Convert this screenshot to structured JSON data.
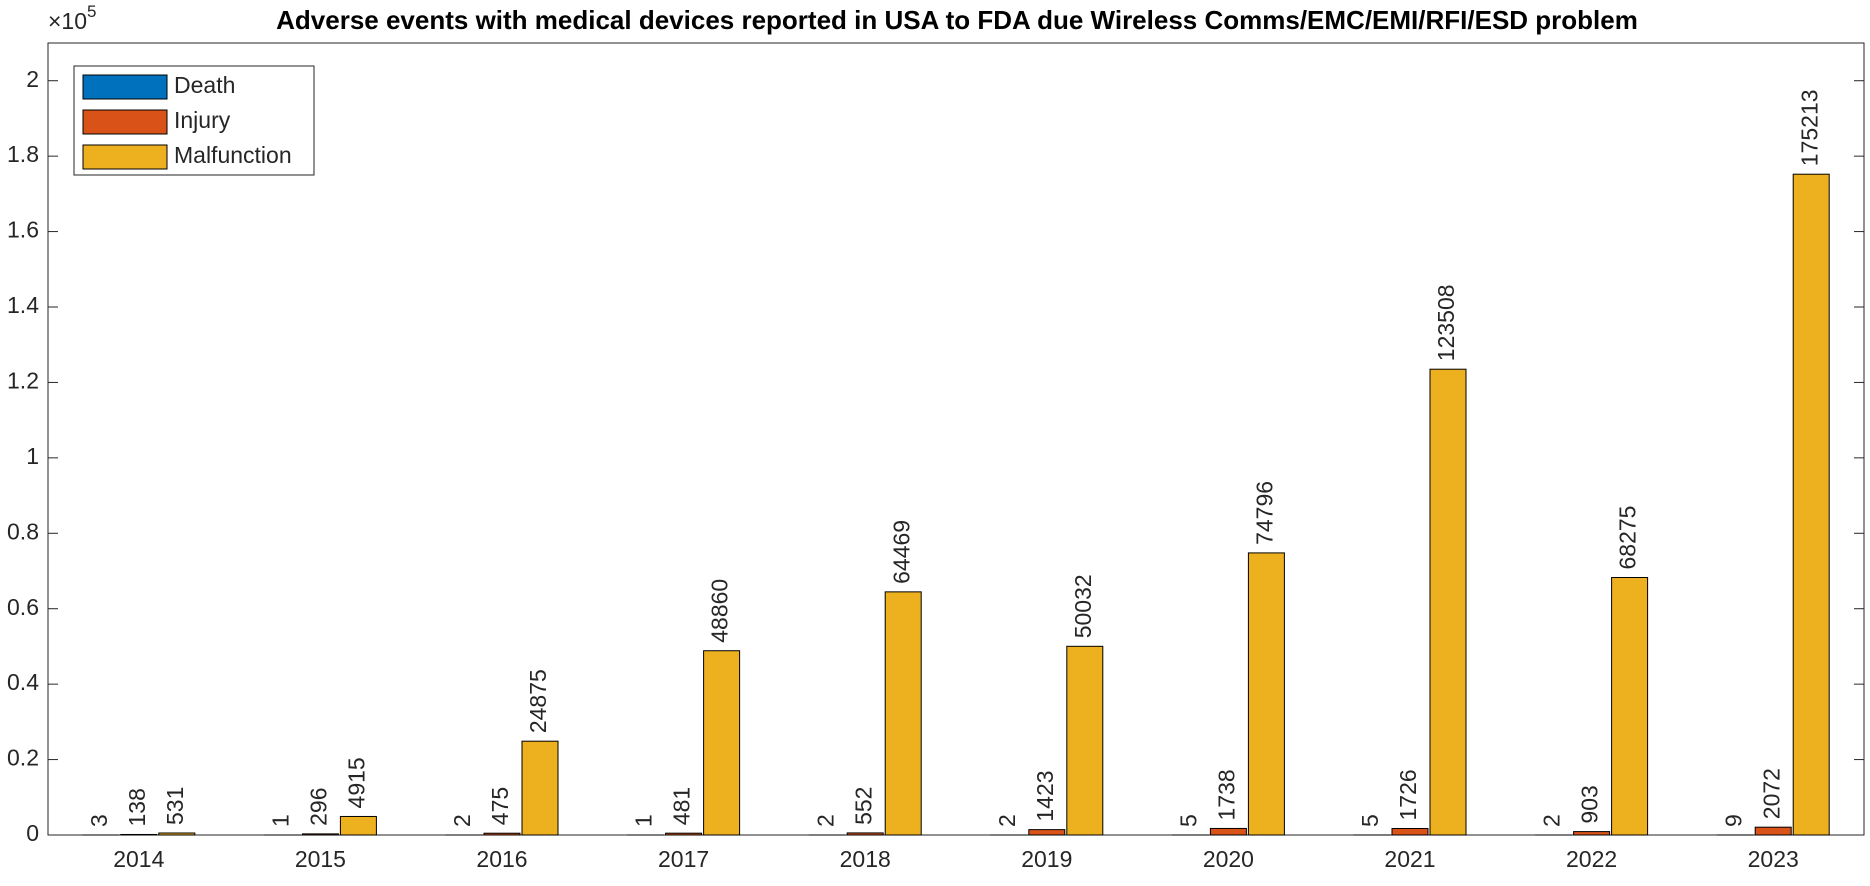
{
  "chart_data": {
    "type": "bar",
    "title": "Adverse events with medical devices reported in USA to FDA due Wireless Comms/EMC/EMI/RFI/ESD problem",
    "y_multiplier": "×10",
    "y_multiplier_exponent": "5",
    "categories": [
      "2014",
      "2015",
      "2016",
      "2017",
      "2018",
      "2019",
      "2020",
      "2021",
      "2022",
      "2023"
    ],
    "series": [
      {
        "name": "Death",
        "color": "#0072BD",
        "values": [
          3,
          1,
          2,
          1,
          2,
          2,
          5,
          5,
          2,
          9
        ]
      },
      {
        "name": "Injury",
        "color": "#D95319",
        "values": [
          138,
          296,
          475,
          481,
          552,
          1423,
          1738,
          1726,
          903,
          2072
        ]
      },
      {
        "name": "Malfunction",
        "color": "#EDB120",
        "values": [
          531,
          4915,
          24875,
          48860,
          64469,
          50032,
          74796,
          123508,
          68275,
          175213
        ]
      }
    ],
    "ylim": [
      0,
      210000
    ],
    "yticks": [
      0,
      {
        "value": 20000,
        "label": "0.2"
      },
      {
        "value": 40000,
        "label": "0.4"
      },
      {
        "value": 60000,
        "label": "0.6"
      },
      {
        "value": 80000,
        "label": "0.8"
      },
      {
        "value": 100000,
        "label": "1"
      },
      {
        "value": 120000,
        "label": "1.2"
      },
      {
        "value": 140000,
        "label": "1.4"
      },
      {
        "value": 160000,
        "label": "1.6"
      },
      {
        "value": 180000,
        "label": "1.8"
      },
      {
        "value": 200000,
        "label": "2"
      }
    ],
    "legend_loc": "upper left",
    "grid": false
  }
}
